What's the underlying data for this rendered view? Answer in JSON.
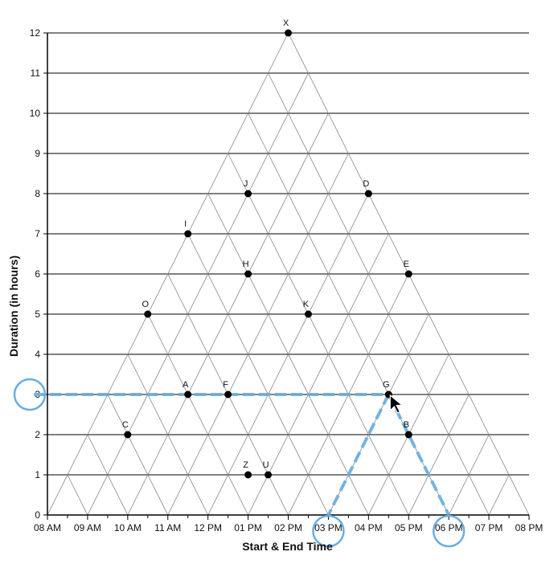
{
  "chart_data": {
    "type": "scatter",
    "xlabel": "Start & End Time",
    "ylabel": "Duration (in hours)",
    "x_ticks": [
      "08 AM",
      "09 AM",
      "10 AM",
      "11 AM",
      "12 PM",
      "01 PM",
      "02 PM",
      "03 PM",
      "04 PM",
      "05 PM",
      "06 PM",
      "07 PM",
      "08 PM"
    ],
    "y_ticks": [
      "0",
      "1",
      "2",
      "3",
      "4",
      "5",
      "6",
      "7",
      "8",
      "9",
      "10",
      "11",
      "12"
    ],
    "xlim_hours": [
      8,
      20
    ],
    "ylim": [
      0,
      12
    ],
    "grid": "triangular",
    "points": [
      {
        "label": "X",
        "midpoint_hour": 14.0,
        "duration": 12
      },
      {
        "label": "J",
        "midpoint_hour": 13.0,
        "duration": 8
      },
      {
        "label": "D",
        "midpoint_hour": 16.0,
        "duration": 8
      },
      {
        "label": "I",
        "midpoint_hour": 11.5,
        "duration": 7
      },
      {
        "label": "H",
        "midpoint_hour": 13.0,
        "duration": 6
      },
      {
        "label": "E",
        "midpoint_hour": 17.0,
        "duration": 6
      },
      {
        "label": "O",
        "midpoint_hour": 10.5,
        "duration": 5
      },
      {
        "label": "K",
        "midpoint_hour": 14.5,
        "duration": 5
      },
      {
        "label": "A",
        "midpoint_hour": 11.5,
        "duration": 3
      },
      {
        "label": "F",
        "midpoint_hour": 12.5,
        "duration": 3
      },
      {
        "label": "G",
        "midpoint_hour": 16.5,
        "duration": 3
      },
      {
        "label": "C",
        "midpoint_hour": 10.0,
        "duration": 2
      },
      {
        "label": "B",
        "midpoint_hour": 17.0,
        "duration": 2
      },
      {
        "label": "Z",
        "midpoint_hour": 13.0,
        "duration": 1
      },
      {
        "label": "U",
        "midpoint_hour": 13.5,
        "duration": 1
      }
    ],
    "highlight": {
      "point": "G",
      "duration": 3,
      "start_hour": 15.0,
      "end_hour": 18.0,
      "color": "#6aaee0"
    },
    "colors": {
      "grid": "#000000",
      "triangle_lines": "#888888",
      "points": "#000000"
    }
  }
}
